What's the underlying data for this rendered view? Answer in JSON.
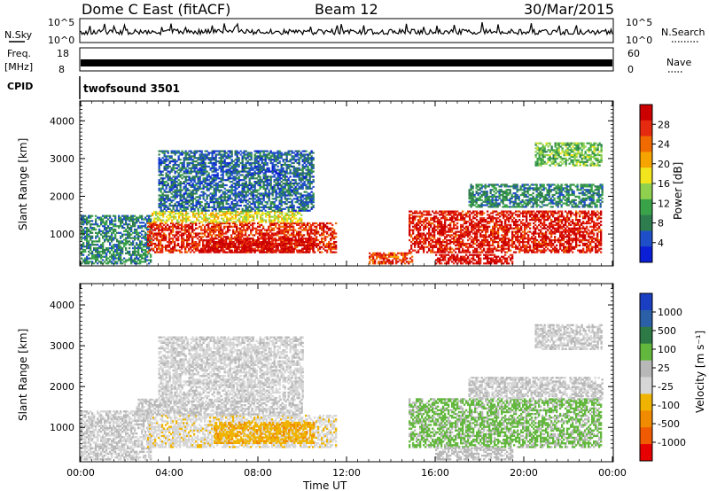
{
  "header": {
    "station": "Dome C East (fitACF)",
    "beam": "Beam 12",
    "date": "30/Mar/2015"
  },
  "top_panels": {
    "nsky_label": "N.Sky",
    "nsky_ticks": [
      "10^5",
      "10^0"
    ],
    "nsearch_label": "N.Search",
    "nsearch_ticks": [
      "10^5",
      "10^0"
    ],
    "freq_label": "Freq.",
    "freq_unit": "[MHz]",
    "freq_ticks": [
      "18",
      "8"
    ],
    "nave_label": "Nave",
    "nave_ticks": [
      "60",
      "0"
    ],
    "cpid_label": "CPID",
    "cpid_value": "twofsound 3501"
  },
  "colors": {
    "power_scale": [
      "#0a1fd6",
      "#1f4fc8",
      "#2e7d4f",
      "#3aa34a",
      "#8fd14f",
      "#f2e51e",
      "#f5a400",
      "#f06a00",
      "#e62a10",
      "#cc0000"
    ],
    "velocity_scale": [
      "#1a3fc2",
      "#2b5fa8",
      "#2e7a46",
      "#62b83c",
      "#b8b8b8",
      "#d6d6d6",
      "#f0b400",
      "#f08a00",
      "#f05a00",
      "#e60000"
    ]
  },
  "chart_data": [
    {
      "type": "heatmap",
      "title": "",
      "ylabel": "Slant Range [km]",
      "xlabel": "",
      "ylim": [
        180,
        4500
      ],
      "yticks": [
        "1000",
        "2000",
        "3000",
        "4000"
      ],
      "colorbar": {
        "label": "Power [dB]",
        "ticks": [
          "28",
          "24",
          "20",
          "16",
          "12",
          "8",
          "4"
        ],
        "range": [
          0,
          30
        ]
      },
      "regions": [
        {
          "t0": 0.0,
          "t1": 3.2,
          "r0": 200,
          "r1": 1500,
          "value": 8
        },
        {
          "t0": 3.0,
          "t1": 11.5,
          "r0": 500,
          "r1": 1300,
          "value": 26
        },
        {
          "t0": 5.5,
          "t1": 10.5,
          "r0": 500,
          "r1": 900,
          "value": 29
        },
        {
          "t0": 3.2,
          "t1": 10.0,
          "r0": 1300,
          "r1": 1600,
          "value": 16
        },
        {
          "t0": 3.5,
          "t1": 10.5,
          "r0": 1600,
          "r1": 3200,
          "value": 6
        },
        {
          "t0": 14.8,
          "t1": 23.5,
          "r0": 500,
          "r1": 1600,
          "value": 27
        },
        {
          "t0": 13.0,
          "t1": 15.0,
          "r0": 200,
          "r1": 500,
          "value": 24
        },
        {
          "t0": 16.0,
          "t1": 19.5,
          "r0": 200,
          "r1": 450,
          "value": 28
        },
        {
          "t0": 17.5,
          "t1": 23.5,
          "r0": 1700,
          "r1": 2300,
          "value": 8
        },
        {
          "t0": 20.5,
          "t1": 23.5,
          "r0": 2800,
          "r1": 3400,
          "value": 12
        }
      ]
    },
    {
      "type": "heatmap",
      "title": "",
      "ylabel": "Slant Range [km]",
      "xlabel": "Time UT",
      "ylim": [
        180,
        4500
      ],
      "yticks": [
        "1000",
        "2000",
        "3000",
        "4000"
      ],
      "xticks": [
        "00:00",
        "04:00",
        "08:00",
        "12:00",
        "16:00",
        "20:00",
        "00:00"
      ],
      "xlim": [
        0,
        24
      ],
      "colorbar": {
        "label": "Velocity [m s⁻¹]",
        "ticks": [
          "1000",
          "500",
          "100",
          "25",
          "-25",
          "-100",
          "-500",
          "-1000"
        ],
        "range": [
          -1200,
          1200
        ]
      },
      "regions": [
        {
          "t0": 0.0,
          "t1": 3.2,
          "r0": 200,
          "r1": 1400,
          "value": -20
        },
        {
          "t0": 3.0,
          "t1": 11.5,
          "r0": 500,
          "r1": 1300,
          "value": -150
        },
        {
          "t0": 6.0,
          "t1": 10.5,
          "r0": 600,
          "r1": 1100,
          "value": -400
        },
        {
          "t0": 2.5,
          "t1": 10.0,
          "r0": 1300,
          "r1": 1700,
          "value": 10
        },
        {
          "t0": 3.5,
          "t1": 10.0,
          "r0": 1700,
          "r1": 3200,
          "value": -60
        },
        {
          "t0": 14.8,
          "t1": 23.5,
          "r0": 500,
          "r1": 1700,
          "value": 300
        },
        {
          "t0": 16.0,
          "t1": 19.5,
          "r0": 200,
          "r1": 500,
          "value": 80
        },
        {
          "t0": 17.5,
          "t1": 23.5,
          "r0": 1700,
          "r1": 2200,
          "value": 0
        },
        {
          "t0": 20.5,
          "t1": 23.5,
          "r0": 2900,
          "r1": 3500,
          "value": 0
        }
      ]
    }
  ]
}
